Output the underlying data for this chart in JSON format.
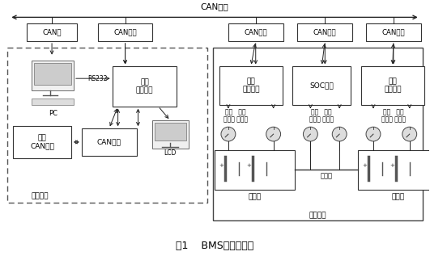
{
  "title": "图1    BMS结构示意图",
  "bg_color": "#ffffff",
  "bus_label": "CAN总线",
  "upper_label": "上层系统",
  "lower_label": "底层系统",
  "lcd_label": "LCD",
  "pc_label": "PC",
  "rs232_label": "RS232",
  "cable_label": "电缆线",
  "battery_box_label": "电池箱"
}
